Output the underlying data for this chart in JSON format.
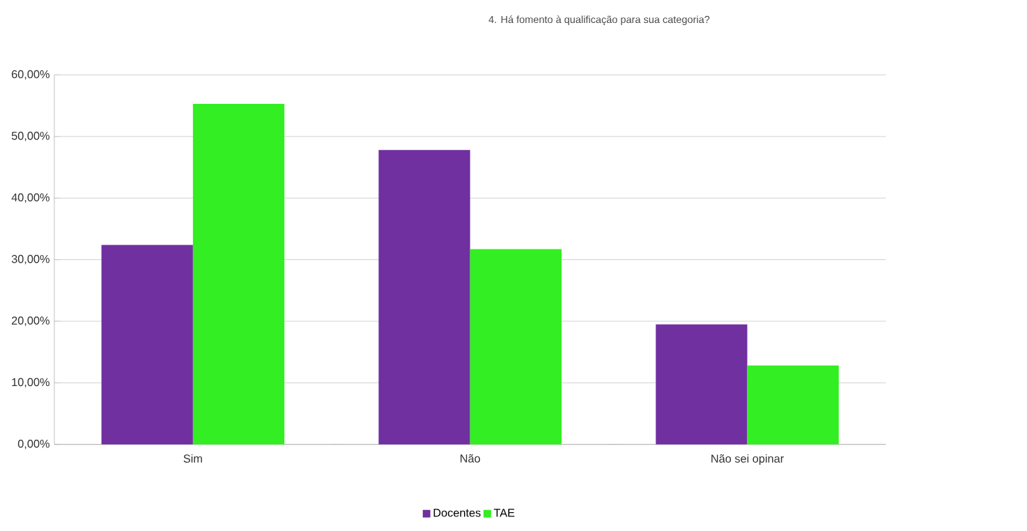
{
  "chart_data": {
    "type": "bar",
    "title": "4. Há fomento à qualificação para sua categoria?",
    "categories": [
      "Sim",
      "Não",
      "Não sei opinar"
    ],
    "series": [
      {
        "name": "Docentes",
        "color": "#7030a0",
        "values": [
          32.4,
          47.8,
          19.5
        ]
      },
      {
        "name": "TAE",
        "color": "#33ee22",
        "values": [
          55.3,
          31.7,
          12.8
        ]
      }
    ],
    "ylim": [
      0,
      60
    ],
    "yticks": [
      {
        "value": 0,
        "label": "0,00%"
      },
      {
        "value": 10,
        "label": "10,00%"
      },
      {
        "value": 20,
        "label": "20,00%"
      },
      {
        "value": 30,
        "label": "30,00%"
      },
      {
        "value": 40,
        "label": "40,00%"
      },
      {
        "value": 50,
        "label": "50,00%"
      },
      {
        "value": 60,
        "label": "60,00%"
      }
    ],
    "grid": "y",
    "legend": "bottom"
  }
}
